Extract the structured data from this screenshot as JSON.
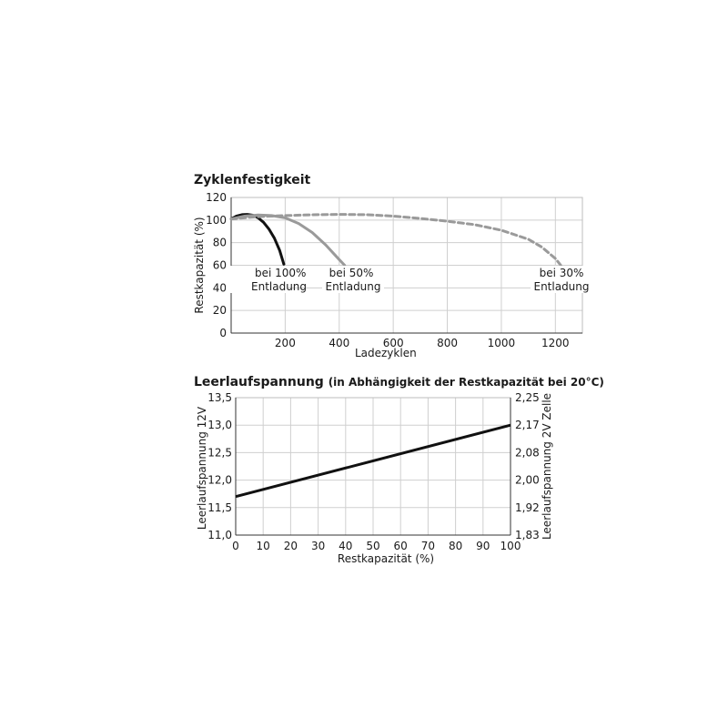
{
  "chart_data": [
    {
      "type": "line",
      "title": "Zyklenfestigkeit",
      "xlabel": "Ladezyklen",
      "ylabel": "Restkapazität (%)",
      "xlim": [
        0,
        1300
      ],
      "ylim": [
        0,
        120
      ],
      "xticks": [
        200,
        400,
        600,
        800,
        1000,
        1200
      ],
      "xtick_labels": [
        "200",
        "400",
        "600",
        "800",
        "1000",
        "1200"
      ],
      "yticks": [
        0,
        20,
        40,
        60,
        80,
        100,
        120
      ],
      "ytick_labels": [
        "0",
        "20",
        "40",
        "60",
        "80",
        "100",
        "120"
      ],
      "grid": true,
      "series": [
        {
          "name": "bei 100% Entladung",
          "label_lines": [
            "bei 100%",
            "Entladung"
          ],
          "color": "#111111",
          "style": "solid",
          "x": [
            0,
            20,
            40,
            60,
            80,
            100,
            120,
            140,
            160,
            180,
            195
          ],
          "y": [
            101,
            103.5,
            104.8,
            105,
            104.3,
            102,
            98,
            92,
            84,
            73,
            61
          ]
        },
        {
          "name": "bei 50% Entladung",
          "label_lines": [
            "bei 50%",
            "Entladung"
          ],
          "color": "#9a9a9a",
          "style": "solid",
          "x": [
            0,
            50,
            100,
            150,
            200,
            250,
            300,
            350,
            400,
            420
          ],
          "y": [
            101,
            103.5,
            104.5,
            104,
            102,
            97,
            89,
            78,
            65,
            60
          ]
        },
        {
          "name": "bei 30% Entladung",
          "label_lines": [
            "bei 30%",
            "Entladung"
          ],
          "color": "#9a9a9a",
          "style": "dashed",
          "x": [
            0,
            100,
            200,
            300,
            400,
            500,
            600,
            700,
            800,
            900,
            1000,
            1100,
            1150,
            1200,
            1220
          ],
          "y": [
            101,
            103,
            104,
            104.7,
            105,
            104.8,
            103.5,
            101.5,
            99,
            96,
            91,
            83,
            76,
            66,
            60
          ]
        }
      ]
    },
    {
      "type": "line",
      "title": "Leerlaufspannung",
      "subtitle": "(in Abhängigkeit der Restkapazität bei 20°C)",
      "xlabel": "Restkapazität (%)",
      "ylabel": "Leerlaufspannung 12V",
      "ylabel_right": "Leerlaufspannung 2V Zelle",
      "xlim": [
        0,
        100
      ],
      "ylim": [
        11.0,
        13.5
      ],
      "ylim_right": [
        1.83,
        2.25
      ],
      "xticks": [
        0,
        10,
        20,
        30,
        40,
        50,
        60,
        70,
        80,
        90,
        100
      ],
      "xtick_labels": [
        "0",
        "10",
        "20",
        "30",
        "40",
        "50",
        "60",
        "70",
        "80",
        "90",
        "100"
      ],
      "yticks": [
        11.0,
        11.5,
        12.0,
        12.5,
        13.0,
        13.5
      ],
      "ytick_labels": [
        "11,0",
        "11,5",
        "12,0",
        "12,5",
        "13,0",
        "13,5"
      ],
      "yticks_right_labels": [
        "1,83",
        "1,92",
        "2,00",
        "2,08",
        "2,17",
        "2,25"
      ],
      "grid": true,
      "series": [
        {
          "color": "#111111",
          "style": "solid",
          "x": [
            0,
            100
          ],
          "y": [
            11.7,
            13.0
          ]
        }
      ]
    }
  ]
}
